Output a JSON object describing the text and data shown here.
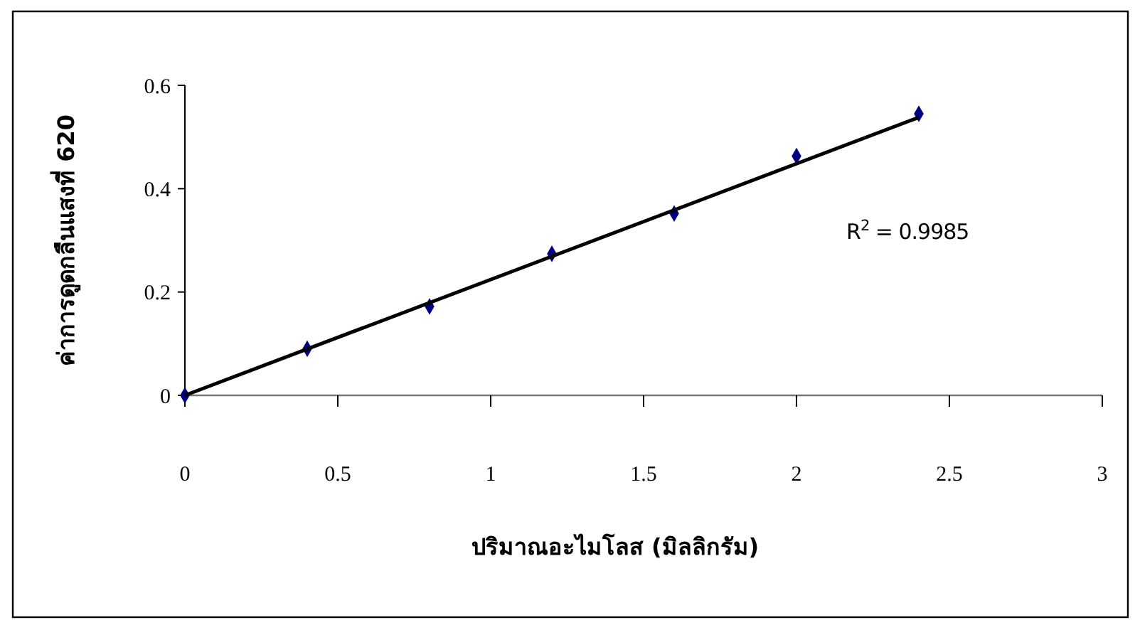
{
  "chart_data": {
    "type": "scatter",
    "xlabel": "ปริมาณอะไมโลส (มิลลิกรัม)",
    "ylabel": "ค่าการดูดกลืนแสงที่ 620",
    "x": [
      0,
      0.4,
      0.8,
      1.2,
      1.6,
      2.0,
      2.4
    ],
    "series": [
      {
        "color": "#000080",
        "values": [
          0,
          0.09,
          0.172,
          0.274,
          0.352,
          0.463,
          0.545
        ],
        "marker": "diamond"
      },
      {
        "type": "line",
        "color": "#000000",
        "x": [
          0,
          2.4
        ],
        "values": [
          0,
          0.538
        ],
        "marker": "none"
      }
    ],
    "xlim": [
      0,
      3
    ],
    "xticks": [
      0,
      0.5,
      1,
      1.5,
      2,
      2.5,
      3
    ],
    "ylim": [
      0,
      0.6
    ],
    "yticks": [
      0,
      0.2,
      0.4,
      0.6
    ],
    "annotations": [
      "R$^{2}$ = 0.9985"
    ],
    "grid": false
  }
}
